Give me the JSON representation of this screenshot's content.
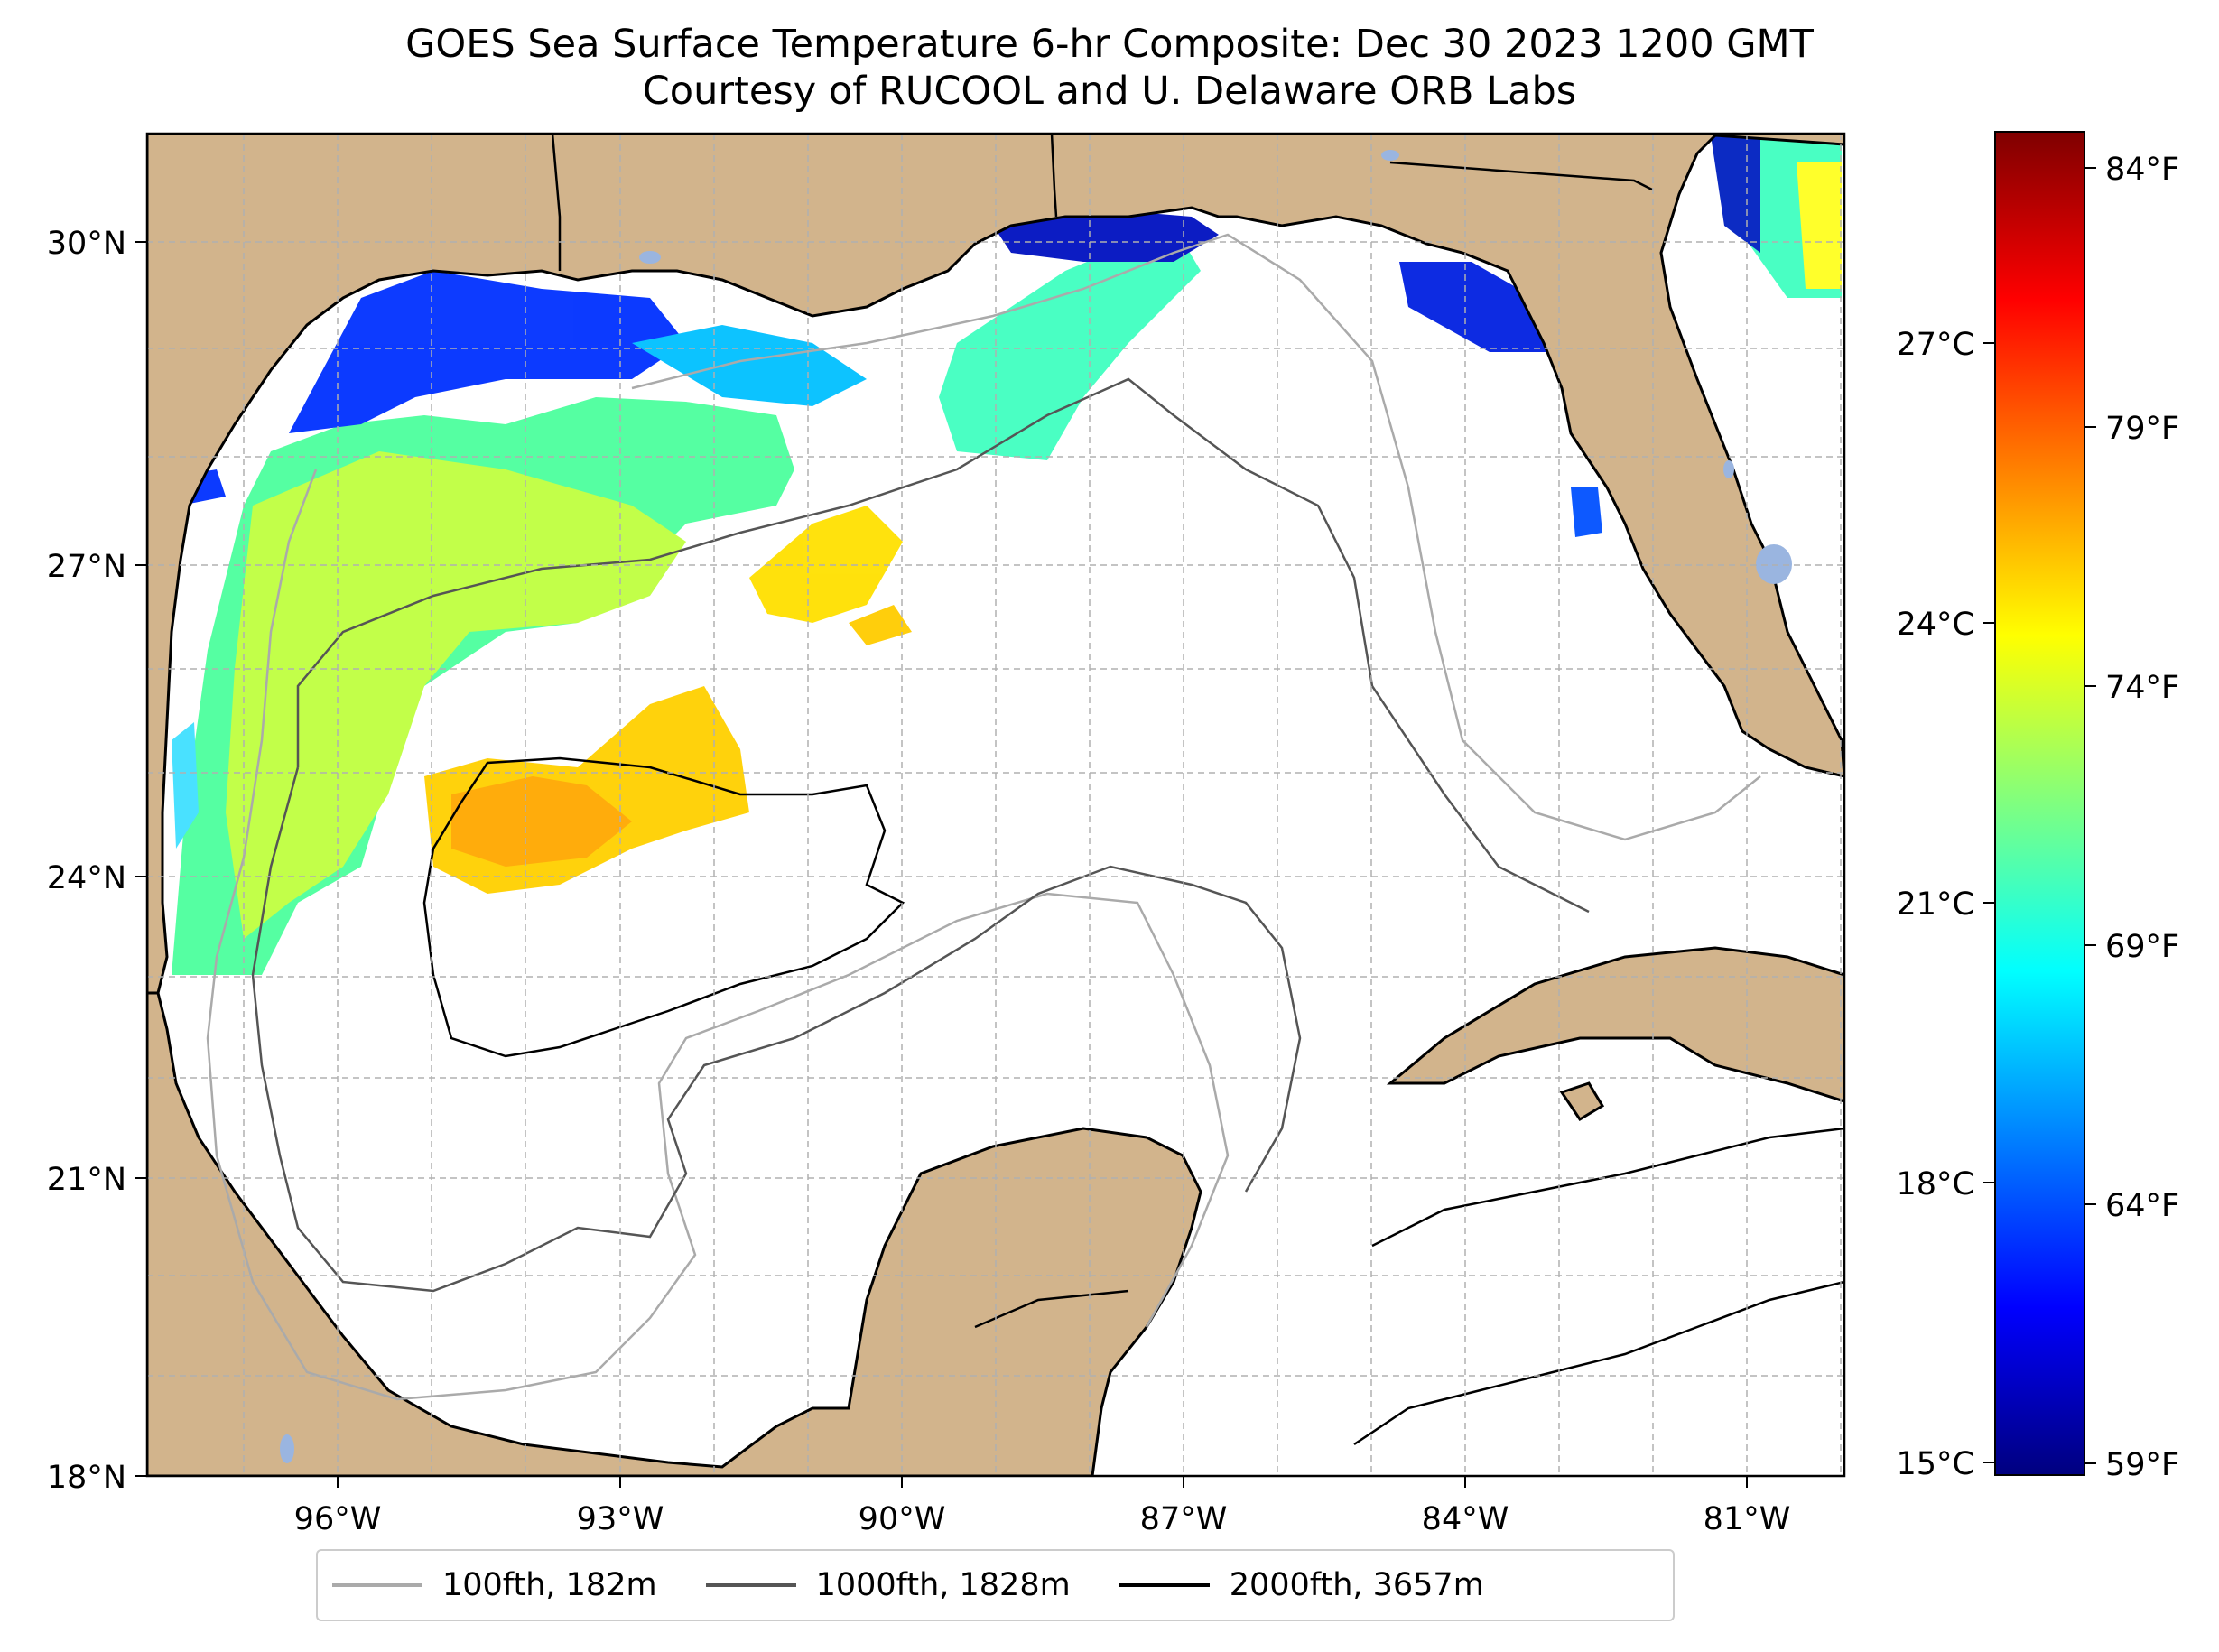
{
  "title_line1": "GOES Sea Surface Temperature 6-hr Composite: Dec 30 2023 1200 GMT",
  "title_line2": "Courtesy of RUCOOL and U. Delaware ORB Labs",
  "axes": {
    "lat_labels": [
      "30°N",
      "27°N",
      "24°N",
      "21°N",
      "18°N"
    ],
    "lon_labels": [
      "96°W",
      "93°W",
      "90°W",
      "87°W",
      "84°W",
      "81°W"
    ]
  },
  "colorbar": {
    "celsius_labels": [
      "27°C",
      "24°C",
      "21°C",
      "18°C",
      "15°C"
    ],
    "fahrenheit_labels": [
      "84°F",
      "79°F",
      "74°F",
      "69°F",
      "64°F",
      "59°F"
    ],
    "colormap": "jet",
    "range_celsius": [
      15,
      28.9
    ]
  },
  "legend": [
    {
      "label": "100fth, 182m",
      "color": "#aaaaaa"
    },
    {
      "label": "1000fth, 1828m",
      "color": "#555555"
    },
    {
      "label": "2000fth, 3657m",
      "color": "#000000"
    }
  ],
  "colors": {
    "land": "#d2b48c",
    "water_bodies": "#9ab5e0",
    "gridline": "#b0b0b0"
  }
}
